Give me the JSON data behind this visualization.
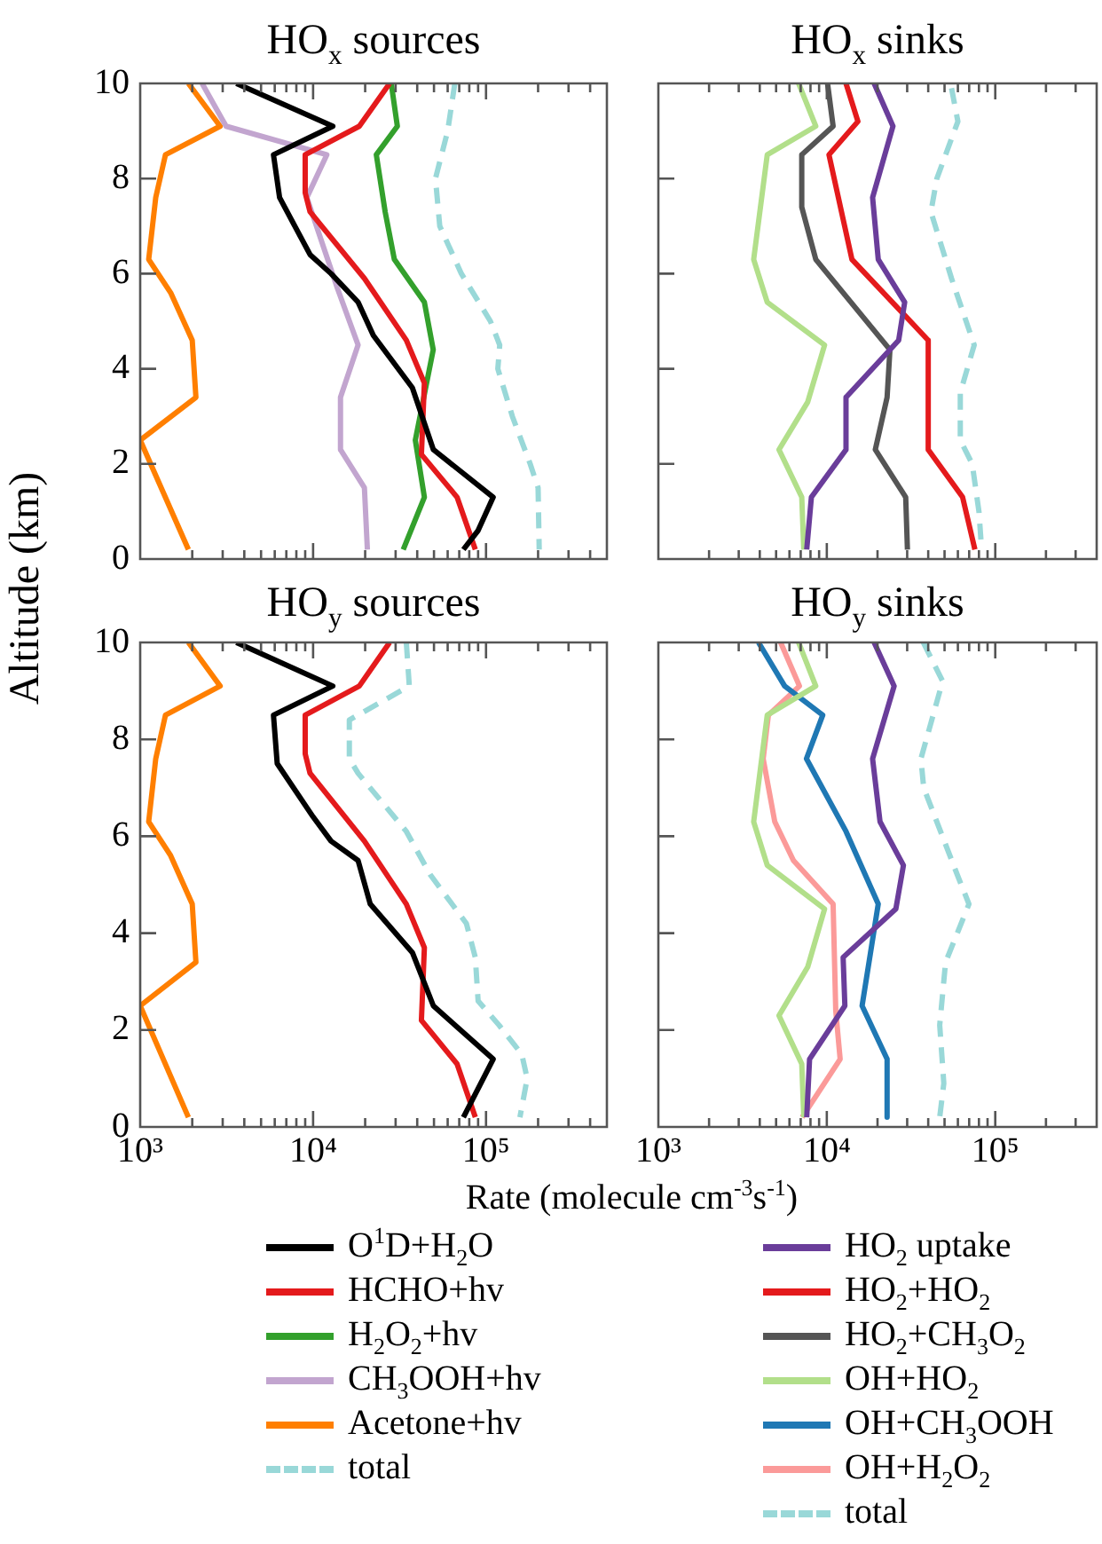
{
  "chart_data": [
    {
      "type": "line",
      "title": "HO$_{x}$ sources",
      "ylabel": "Altitude (km)",
      "log": "x",
      "grid": false,
      "marker": "none",
      "legend": "bottom",
      "tick_labels": "y",
      "xlim": [
        1000,
        500000
      ],
      "ylim": [
        0,
        10
      ],
      "yticks": [
        0,
        2,
        4,
        6,
        8,
        10
      ],
      "xticks": [
        {
          "value": 1000,
          "label": null
        },
        {
          "value": 2000,
          "label": null
        },
        {
          "value": 3000,
          "label": null
        },
        {
          "value": 4000,
          "label": null
        },
        {
          "value": 5000,
          "label": null
        },
        {
          "value": 6000,
          "label": null
        },
        {
          "value": 7000,
          "label": null
        },
        {
          "value": 8000,
          "label": null
        },
        {
          "value": 9000,
          "label": null
        },
        {
          "value": 10000,
          "label": null
        },
        {
          "value": 20000,
          "label": null
        },
        {
          "value": 30000,
          "label": null
        },
        {
          "value": 40000,
          "label": null
        },
        {
          "value": 50000,
          "label": null
        },
        {
          "value": 60000,
          "label": null
        },
        {
          "value": 70000,
          "label": null
        },
        {
          "value": 80000,
          "label": null
        },
        {
          "value": 90000,
          "label": null
        },
        {
          "value": 100000,
          "label": null
        },
        {
          "value": 200000,
          "label": null
        },
        {
          "value": 300000,
          "label": null
        },
        {
          "value": 400000,
          "label": null
        }
      ],
      "series": [
        {
          "name": "O$^{1}$D+H$_{2}$O",
          "color": "#000000",
          "x": [
            3600,
            13000,
            5900,
            6400,
            9600,
            12700,
            18200,
            22300,
            37500,
            49600,
            110000,
            90000,
            74000
          ],
          "values": [
            10,
            9.1,
            8.5,
            7.6,
            6.4,
            6.0,
            5.4,
            4.7,
            3.6,
            2.3,
            1.3,
            0.6,
            0.2
          ]
        },
        {
          "name": "HCHO+hv",
          "color": "#e41a1c",
          "x": [
            27700,
            18500,
            9000,
            9000,
            9600,
            19800,
            34600,
            44000,
            42300,
            68000,
            86700
          ],
          "values": [
            10,
            9.1,
            8.5,
            7.7,
            7.3,
            5.9,
            4.6,
            3.7,
            2.2,
            1.3,
            0.2
          ]
        },
        {
          "name": "H$_{2}$O$_{2}$+hv",
          "color": "#33a02c",
          "x": [
            28300,
            30700,
            23200,
            26100,
            29500,
            44000,
            49500,
            39000,
            44000,
            33200
          ],
          "values": [
            10,
            9.1,
            8.5,
            7.3,
            6.3,
            5.4,
            4.4,
            2.5,
            1.3,
            0.2
          ]
        },
        {
          "name": "CH$_{3}$OOH+hv",
          "color": "#c2a5cf",
          "x": [
            2280,
            3140,
            12000,
            9200,
            13800,
            18200,
            14400,
            14400,
            19800,
            20600
          ],
          "values": [
            10,
            9.1,
            8.5,
            7.6,
            5.7,
            4.5,
            3.4,
            2.3,
            1.5,
            0.2
          ]
        },
        {
          "name": "Acetone+hv",
          "color": "#ff7f00",
          "x": [
            1900,
            2900,
            1400,
            1230,
            1120,
            1500,
            2000,
            2100,
            1000,
            1900
          ],
          "values": [
            10,
            9.1,
            8.5,
            7.6,
            6.3,
            5.6,
            4.6,
            3.4,
            2.5,
            0.2
          ]
        },
        {
          "name": "total",
          "color": "#99d8d8",
          "line_style": "dashed",
          "x": [
            66000,
            60000,
            51000,
            54000,
            72000,
            106000,
            120000,
            117000,
            142000,
            180000,
            200000,
            203000
          ],
          "values": [
            10,
            9,
            8,
            7,
            6,
            5,
            4.5,
            4,
            3,
            2,
            1.5,
            0.2
          ]
        }
      ]
    },
    {
      "type": "line",
      "title": "HO$_{x}$ sinks",
      "log": "x",
      "grid": false,
      "marker": "none",
      "legend": "bottom",
      "tick_labels": false,
      "xlim": [
        1000,
        400000
      ],
      "ylim": [
        0,
        10
      ],
      "yticks": [
        0,
        2,
        4,
        6,
        8,
        10
      ],
      "xticks": [
        {
          "value": 1000,
          "label": null
        },
        {
          "value": 2000,
          "label": null
        },
        {
          "value": 3000,
          "label": null
        },
        {
          "value": 4000,
          "label": null
        },
        {
          "value": 5000,
          "label": null
        },
        {
          "value": 6000,
          "label": null
        },
        {
          "value": 7000,
          "label": null
        },
        {
          "value": 8000,
          "label": null
        },
        {
          "value": 9000,
          "label": null
        },
        {
          "value": 10000,
          "label": null
        },
        {
          "value": 20000,
          "label": null
        },
        {
          "value": 30000,
          "label": null
        },
        {
          "value": 40000,
          "label": null
        },
        {
          "value": 50000,
          "label": null
        },
        {
          "value": 60000,
          "label": null
        },
        {
          "value": 70000,
          "label": null
        },
        {
          "value": 80000,
          "label": null
        },
        {
          "value": 90000,
          "label": null
        },
        {
          "value": 100000,
          "label": null
        },
        {
          "value": 200000,
          "label": null
        },
        {
          "value": 300000,
          "label": null
        },
        {
          "value": 400000,
          "label": null
        }
      ],
      "series": [
        {
          "name": "HO$_{2}$ uptake",
          "color": "#6a3d9a",
          "x": [
            19100,
            24700,
            18700,
            20200,
            29000,
            26700,
            13000,
            13000,
            8100,
            7600
          ],
          "values": [
            10,
            9.1,
            7.6,
            6.3,
            5.4,
            4.6,
            3.4,
            2.3,
            1.3,
            0.2
          ]
        },
        {
          "name": "HO$_{2}$+HO$_{2}$",
          "color": "#e41a1c",
          "x": [
            13000,
            15300,
            10300,
            14100,
            40000,
            40000,
            64000,
            75700
          ],
          "values": [
            10,
            9.2,
            8.5,
            6.3,
            4.6,
            2.3,
            1.3,
            0.2
          ]
        },
        {
          "name": "HO$_{2}$+CH$_{3}$O$_{2}$",
          "color": "#555555",
          "x": [
            10100,
            10900,
            7100,
            7100,
            8600,
            23700,
            22800,
            19400,
            29400,
            30100
          ],
          "values": [
            10,
            9.1,
            8.5,
            7.4,
            6.3,
            4.4,
            3.4,
            2.3,
            1.3,
            0.2
          ]
        },
        {
          "name": "OH+HO$_{2}$",
          "color": "#b2df8a",
          "x": [
            6800,
            8600,
            4430,
            3680,
            4430,
            9700,
            7700,
            5200,
            7100,
            7300
          ],
          "values": [
            10,
            9.1,
            8.5,
            6.3,
            5.4,
            4.5,
            3.3,
            2.3,
            1.3,
            0.2
          ]
        },
        {
          "color": "#99d8d8",
          "line_style": "dashed",
          "x": [
            55000,
            60000,
            45000,
            41500,
            55000,
            75000,
            62000,
            62000,
            73000,
            80000,
            83000
          ],
          "values": [
            9.9,
            9.2,
            8,
            7.3,
            5.9,
            4.5,
            3.5,
            2.5,
            2,
            1,
            0.2
          ]
        }
      ]
    },
    {
      "type": "line",
      "title": "HO$_{y}$ sources",
      "xlabel": "Rate (molecule cm$^{-3}$s$^{-1}$)",
      "log": "x",
      "grid": false,
      "marker": "none",
      "xlim": [
        1000,
        500000
      ],
      "ylim": [
        0,
        10
      ],
      "yticks": [
        0,
        2,
        4,
        6,
        8,
        10
      ],
      "xticks": [
        {
          "value": 1000,
          "label": "10³"
        },
        {
          "value": 2000,
          "label": null
        },
        {
          "value": 3000,
          "label": null
        },
        {
          "value": 4000,
          "label": null
        },
        {
          "value": 5000,
          "label": null
        },
        {
          "value": 6000,
          "label": null
        },
        {
          "value": 7000,
          "label": null
        },
        {
          "value": 8000,
          "label": null
        },
        {
          "value": 9000,
          "label": null
        },
        {
          "value": 10000,
          "label": "10⁴"
        },
        {
          "value": 20000,
          "label": null
        },
        {
          "value": 30000,
          "label": null
        },
        {
          "value": 40000,
          "label": null
        },
        {
          "value": 50000,
          "label": null
        },
        {
          "value": 60000,
          "label": null
        },
        {
          "value": 70000,
          "label": null
        },
        {
          "value": 80000,
          "label": null
        },
        {
          "value": 90000,
          "label": null
        },
        {
          "value": 100000,
          "label": "10⁵"
        },
        {
          "value": 200000,
          "label": null
        },
        {
          "value": 300000,
          "label": null
        },
        {
          "value": 400000,
          "label": null
        }
      ],
      "series": [
        {
          "color": "#000000",
          "x": [
            3600,
            13000,
            5900,
            6200,
            10000,
            12700,
            18200,
            21400,
            37500,
            49600,
            110000,
            74000
          ],
          "values": [
            10,
            9.1,
            8.5,
            7.5,
            6.4,
            5.9,
            5.5,
            4.6,
            3.6,
            2.5,
            1.4,
            0.2
          ]
        },
        {
          "color": "#e41a1c",
          "x": [
            27700,
            18500,
            9000,
            9000,
            9600,
            19800,
            34600,
            44000,
            42300,
            68000,
            86700
          ],
          "values": [
            10,
            9.1,
            8.5,
            7.7,
            7.3,
            5.9,
            4.6,
            3.7,
            2.2,
            1.3,
            0.2
          ]
        },
        {
          "color": "#ff7f00",
          "x": [
            1900,
            2900,
            1400,
            1230,
            1120,
            1500,
            2000,
            2100,
            1000,
            1900
          ],
          "values": [
            10,
            9.1,
            8.5,
            7.6,
            6.3,
            5.6,
            4.6,
            3.4,
            2.5,
            0.2
          ]
        },
        {
          "color": "#99d8d8",
          "line_style": "dashed",
          "x": [
            34600,
            36000,
            16200,
            16200,
            18200,
            34600,
            47700,
            77000,
            86700,
            90000,
            119000,
            161000,
            173000,
            157000
          ],
          "values": [
            10,
            9.1,
            8.4,
            7.6,
            7.3,
            6.1,
            5.2,
            4.2,
            3.5,
            2.6,
            2.1,
            1.5,
            1,
            0.2
          ]
        }
      ]
    },
    {
      "type": "line",
      "title": "HO$_{y}$ sinks",
      "log": "x",
      "grid": false,
      "marker": "none",
      "legend": "bottom",
      "tick_labels": "x",
      "xlim": [
        1000,
        400000
      ],
      "ylim": [
        0,
        10
      ],
      "yticks": [
        0,
        2,
        4,
        6,
        8,
        10
      ],
      "xticks": [
        {
          "value": 1000,
          "label": "10³"
        },
        {
          "value": 2000,
          "label": null
        },
        {
          "value": 3000,
          "label": null
        },
        {
          "value": 4000,
          "label": null
        },
        {
          "value": 5000,
          "label": null
        },
        {
          "value": 6000,
          "label": null
        },
        {
          "value": 7000,
          "label": null
        },
        {
          "value": 8000,
          "label": null
        },
        {
          "value": 9000,
          "label": null
        },
        {
          "value": 10000,
          "label": "10⁴"
        },
        {
          "value": 20000,
          "label": null
        },
        {
          "value": 30000,
          "label": null
        },
        {
          "value": 40000,
          "label": null
        },
        {
          "value": 50000,
          "label": null
        },
        {
          "value": 60000,
          "label": null
        },
        {
          "value": 70000,
          "label": null
        },
        {
          "value": 80000,
          "label": null
        },
        {
          "value": 90000,
          "label": null
        },
        {
          "value": 100000,
          "label": "10⁵"
        },
        {
          "value": 200000,
          "label": null
        },
        {
          "value": 300000,
          "label": null
        },
        {
          "value": 400000,
          "label": null
        }
      ],
      "series": [
        {
          "color": "#6a3d9a",
          "x": [
            19100,
            25100,
            18700,
            20700,
            28500,
            25700,
            12500,
            12800,
            7900,
            7600
          ],
          "values": [
            10,
            9.1,
            7.6,
            6.3,
            5.4,
            4.5,
            3.5,
            2.5,
            1.4,
            0.2
          ]
        },
        {
          "color": "#b2df8a",
          "x": [
            6800,
            8600,
            4430,
            3680,
            4430,
            9700,
            7700,
            5200,
            7100,
            7300
          ],
          "values": [
            10,
            9.1,
            8.5,
            6.3,
            5.4,
            4.5,
            3.3,
            2.3,
            1.3,
            0.2
          ]
        },
        {
          "name": "OH+CH$_{3}$OOH",
          "color": "#1f78b4",
          "x": [
            3930,
            5620,
            9460,
            7570,
            13000,
            20200,
            16200,
            22800,
            22800
          ],
          "values": [
            10,
            9.1,
            8.5,
            7.6,
            6.1,
            4.6,
            2.5,
            1.4,
            0.2
          ]
        },
        {
          "name": "OH+H$_{2}$O$_{2}$",
          "color": "#fb9a99",
          "x": [
            5320,
            6880,
            4500,
            4190,
            4910,
            6340,
            10900,
            11300,
            12000,
            7140
          ],
          "values": [
            10,
            9.1,
            8.5,
            7.6,
            6.3,
            5.5,
            4.6,
            2.4,
            1.4,
            0.2
          ]
        },
        {
          "name": "total",
          "color": "#99d8d8",
          "line_style": "dashed",
          "x": [
            37400,
            48700,
            36200,
            37600,
            59600,
            69800,
            50700,
            46800,
            49500,
            46800
          ],
          "values": [
            10,
            9.2,
            7.6,
            7,
            5.2,
            4.6,
            3.4,
            2.1,
            0.9,
            0.2
          ]
        }
      ]
    }
  ]
}
